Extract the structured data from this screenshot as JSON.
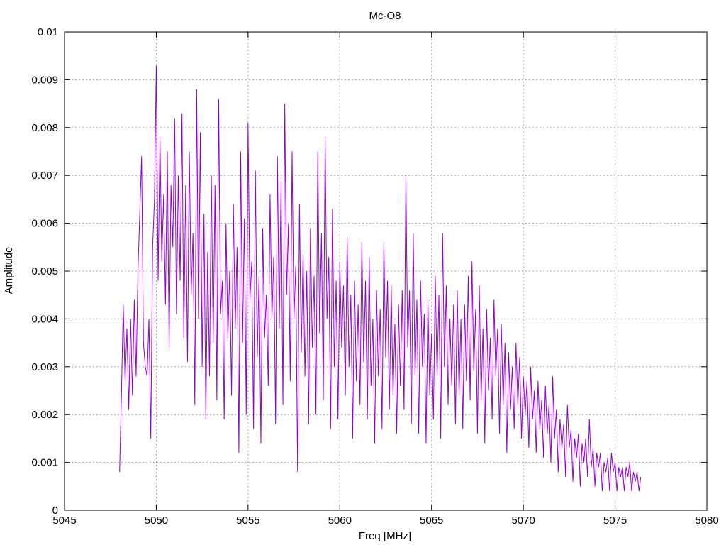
{
  "chart_data": {
    "type": "line",
    "title": "Mc-O8",
    "xlabel": "Freq [MHz]",
    "ylabel": "Amplitude",
    "xlim": [
      5045,
      5080
    ],
    "ylim": [
      0,
      0.01
    ],
    "x_ticks": [
      "5045",
      "5050",
      "5055",
      "5060",
      "5065",
      "5070",
      "5075",
      "5080"
    ],
    "y_ticks": [
      "0",
      "0.001",
      "0.002",
      "0.003",
      "0.004",
      "0.005",
      "0.006",
      "0.007",
      "0.008",
      "0.009",
      "0.01"
    ],
    "grid": true,
    "legend": "none",
    "line_color": "#9400d3",
    "series": [
      {
        "x_start": 5048.0,
        "x_step": 0.1,
        "values": [
          0.0008,
          0.0024,
          0.0043,
          0.0027,
          0.0038,
          0.0021,
          0.004,
          0.0024,
          0.0044,
          0.0028,
          0.005,
          0.0062,
          0.0074,
          0.0035,
          0.003,
          0.0028,
          0.004,
          0.0015,
          0.0055,
          0.0065,
          0.0093,
          0.0048,
          0.0078,
          0.0052,
          0.0066,
          0.0043,
          0.0075,
          0.0034,
          0.0068,
          0.0055,
          0.0082,
          0.0041,
          0.007,
          0.0048,
          0.0083,
          0.0036,
          0.0068,
          0.0031,
          0.0075,
          0.0045,
          0.0058,
          0.0022,
          0.0088,
          0.004,
          0.0079,
          0.003,
          0.0062,
          0.0019,
          0.0054,
          0.0028,
          0.007,
          0.0035,
          0.0068,
          0.0023,
          0.0086,
          0.0041,
          0.0048,
          0.0019,
          0.006,
          0.0036,
          0.005,
          0.0024,
          0.0064,
          0.0038,
          0.0055,
          0.0012,
          0.0075,
          0.0035,
          0.0061,
          0.002,
          0.0081,
          0.0044,
          0.0052,
          0.0017,
          0.0071,
          0.0032,
          0.0049,
          0.0014,
          0.0059,
          0.0036,
          0.0045,
          0.0026,
          0.0066,
          0.004,
          0.0053,
          0.0018,
          0.0074,
          0.0038,
          0.0069,
          0.0022,
          0.0085,
          0.0045,
          0.006,
          0.0027,
          0.0075,
          0.004,
          0.0051,
          0.0008,
          0.0064,
          0.0033,
          0.0054,
          0.0028,
          0.005,
          0.0018,
          0.0059,
          0.0034,
          0.0049,
          0.002,
          0.0075,
          0.0037,
          0.0058,
          0.0023,
          0.0078,
          0.004,
          0.0053,
          0.0017,
          0.0063,
          0.003,
          0.0048,
          0.0019,
          0.0052,
          0.0034,
          0.0047,
          0.0024,
          0.0057,
          0.003,
          0.0045,
          0.0015,
          0.0048,
          0.0027,
          0.0043,
          0.0022,
          0.0056,
          0.0031,
          0.0048,
          0.0019,
          0.0053,
          0.0026,
          0.004,
          0.0014,
          0.0046,
          0.0028,
          0.0042,
          0.0017,
          0.0056,
          0.0032,
          0.0048,
          0.0021,
          0.0047,
          0.0024,
          0.0039,
          0.0016,
          0.0043,
          0.0026,
          0.0046,
          0.0021,
          0.007,
          0.0034,
          0.0046,
          0.0018,
          0.0058,
          0.0028,
          0.0044,
          0.0016,
          0.0048,
          0.003,
          0.0041,
          0.0014,
          0.0044,
          0.0024,
          0.0037,
          0.0019,
          0.0049,
          0.0028,
          0.0045,
          0.0015,
          0.0058,
          0.003,
          0.0047,
          0.0022,
          0.004,
          0.0026,
          0.0043,
          0.0018,
          0.0046,
          0.0024,
          0.004,
          0.0017,
          0.0043,
          0.0027,
          0.0049,
          0.0023,
          0.0052,
          0.0029,
          0.0042,
          0.0016,
          0.0047,
          0.0023,
          0.0038,
          0.0014,
          0.0042,
          0.0025,
          0.0036,
          0.0019,
          0.0044,
          0.0028,
          0.0038,
          0.0016,
          0.0039,
          0.0022,
          0.0035,
          0.0012,
          0.0033,
          0.0021,
          0.003,
          0.0017,
          0.0035,
          0.0022,
          0.0032,
          0.0015,
          0.0028,
          0.002,
          0.0027,
          0.0013,
          0.003,
          0.0019,
          0.0025,
          0.0012,
          0.0027,
          0.0017,
          0.0023,
          0.0011,
          0.0026,
          0.0016,
          0.0022,
          0.001,
          0.0028,
          0.0015,
          0.0021,
          0.0008,
          0.0019,
          0.0013,
          0.0018,
          0.0007,
          0.0022,
          0.0013,
          0.0017,
          0.0006,
          0.0015,
          0.0011,
          0.0016,
          0.0005,
          0.0014,
          0.001,
          0.0015,
          0.0007,
          0.0019,
          0.0009,
          0.0013,
          0.0005,
          0.0012,
          0.0009,
          0.0012,
          0.0004,
          0.001,
          0.0008,
          0.0011,
          0.0004,
          0.0012,
          0.0008,
          0.001,
          0.0004,
          0.0009,
          0.0007,
          0.0009,
          0.0004,
          0.0009,
          0.0007,
          0.001,
          0.0004,
          0.0008,
          0.0006,
          0.0008,
          0.0004,
          0.0007
        ]
      }
    ]
  }
}
